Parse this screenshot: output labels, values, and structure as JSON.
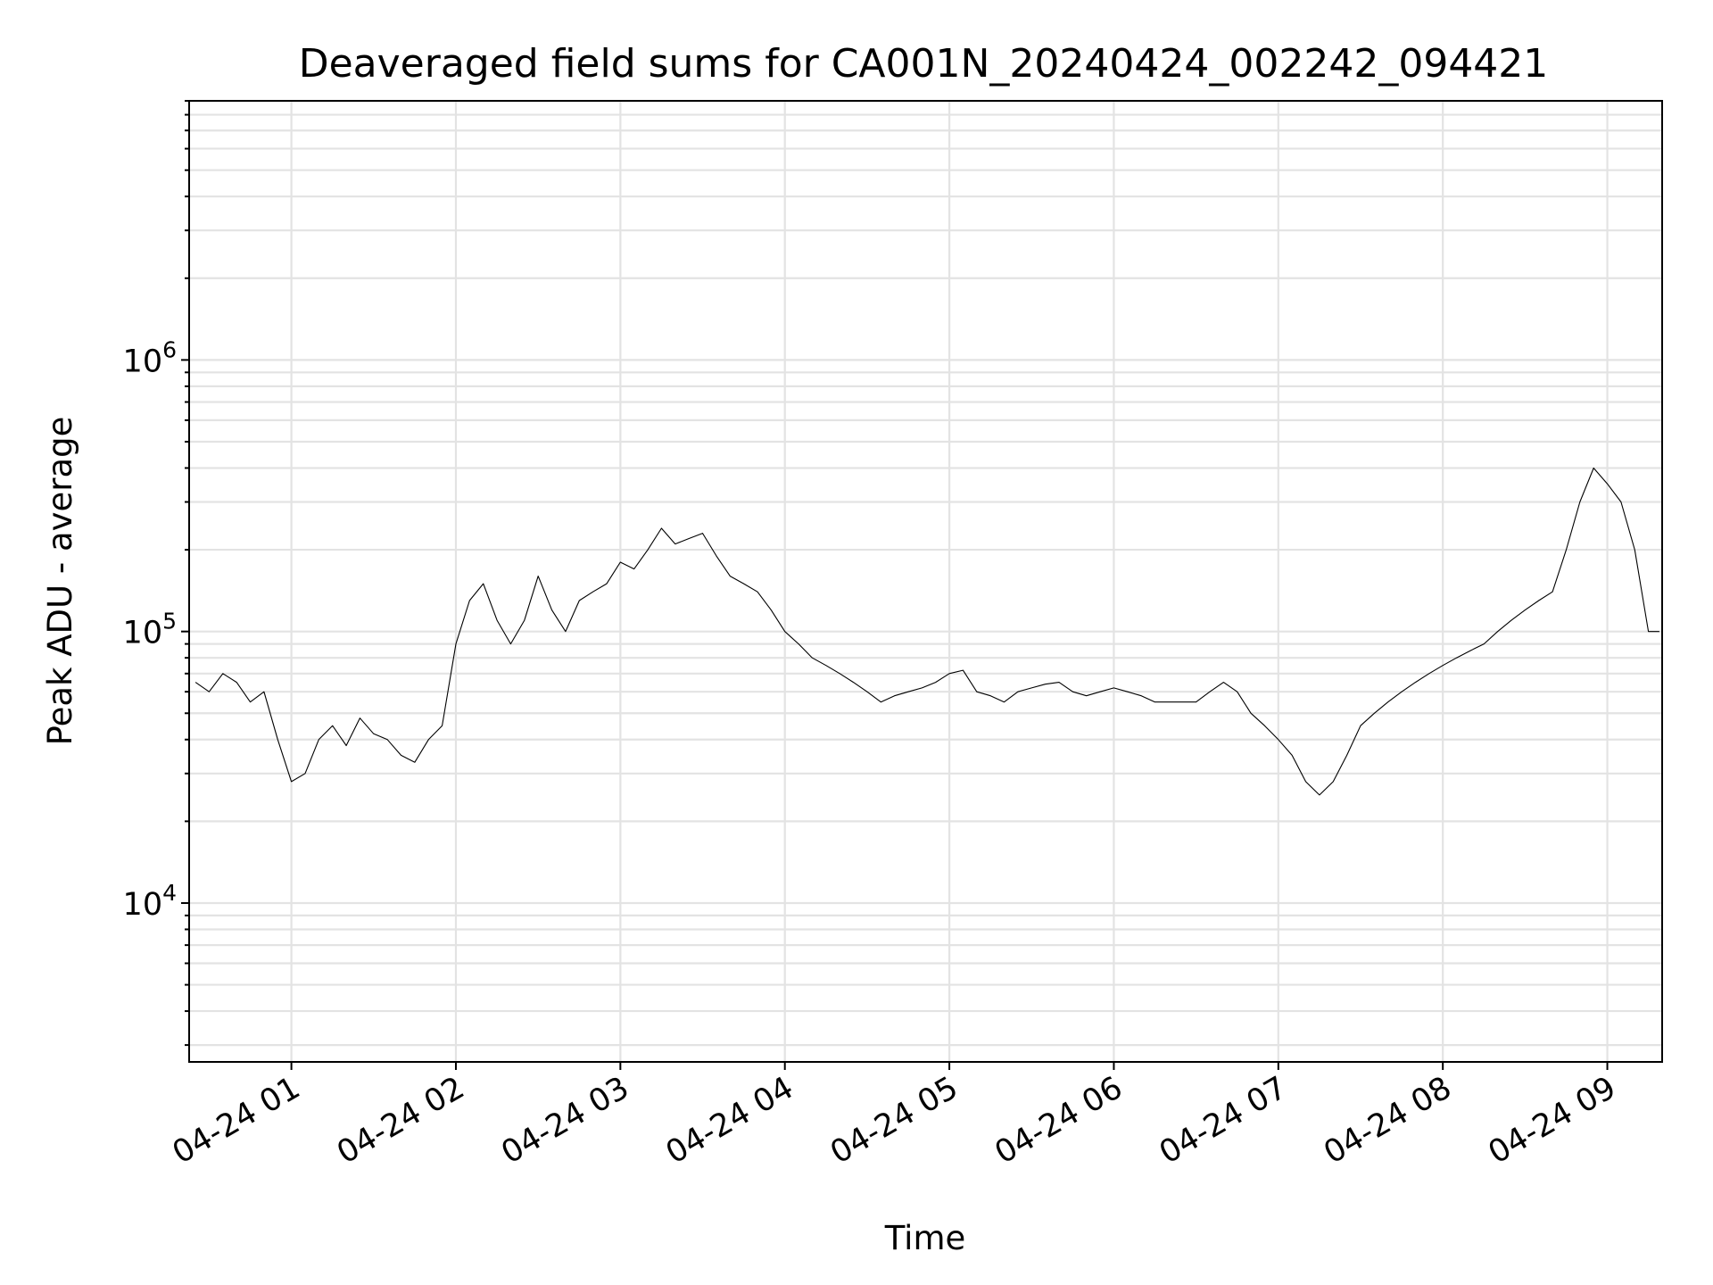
{
  "chart_data": {
    "type": "line",
    "title": "Deaveraged field sums for CA001N_20240424_002242_094421",
    "xlabel": "Time",
    "ylabel": "Peak ADU - average",
    "xlim": [
      "2024-04-24 00:22:42",
      "2024-04-24 09:20:00"
    ],
    "ylim": [
      2600,
      9000000
    ],
    "yscale": "log",
    "grid": "both",
    "x_ticks": [
      {
        "time": "2024-04-24 01:00",
        "label": "04-24 01"
      },
      {
        "time": "2024-04-24 02:00",
        "label": "04-24 02"
      },
      {
        "time": "2024-04-24 03:00",
        "label": "04-24 03"
      },
      {
        "time": "2024-04-24 04:00",
        "label": "04-24 04"
      },
      {
        "time": "2024-04-24 05:00",
        "label": "04-24 05"
      },
      {
        "time": "2024-04-24 06:00",
        "label": "04-24 06"
      },
      {
        "time": "2024-04-24 07:00",
        "label": "04-24 07"
      },
      {
        "time": "2024-04-24 08:00",
        "label": "04-24 08"
      },
      {
        "time": "2024-04-24 09:00",
        "label": "04-24 09"
      }
    ],
    "y_ticks": [
      {
        "value": 10000,
        "base": "10",
        "exp": "4"
      },
      {
        "value": 100000,
        "base": "10",
        "exp": "5"
      },
      {
        "value": 1000000,
        "base": "10",
        "exp": "6"
      }
    ],
    "series": [
      {
        "color": "#000000",
        "x": [
          "00:25",
          "00:30",
          "00:35",
          "00:40",
          "00:45",
          "00:50",
          "00:55",
          "01:00",
          "01:05",
          "01:10",
          "01:15",
          "01:20",
          "01:25",
          "01:30",
          "01:35",
          "01:40",
          "01:45",
          "01:50",
          "01:55",
          "02:00",
          "02:05",
          "02:10",
          "02:15",
          "02:20",
          "02:25",
          "02:30",
          "02:35",
          "02:40",
          "02:45",
          "02:50",
          "02:55",
          "03:00",
          "03:05",
          "03:10",
          "03:15",
          "03:20",
          "03:25",
          "03:30",
          "03:35",
          "03:40",
          "03:45",
          "03:50",
          "03:55",
          "04:00",
          "04:05",
          "04:10",
          "04:15",
          "04:20",
          "04:25",
          "04:30",
          "04:35",
          "04:40",
          "04:45",
          "04:50",
          "04:55",
          "05:00",
          "05:05",
          "05:10",
          "05:15",
          "05:20",
          "05:25",
          "05:30",
          "05:35",
          "05:40",
          "05:45",
          "05:50",
          "05:55",
          "06:00",
          "06:05",
          "06:10",
          "06:15",
          "06:20",
          "06:25",
          "06:30",
          "06:35",
          "06:40",
          "06:45",
          "06:50",
          "06:55",
          "07:00",
          "07:05",
          "07:10",
          "07:15",
          "07:20",
          "07:25",
          "07:30",
          "07:35",
          "07:40",
          "07:45",
          "07:50",
          "07:55",
          "08:00",
          "08:05",
          "08:10",
          "08:15",
          "08:20",
          "08:25",
          "08:30",
          "08:35",
          "08:40",
          "08:45",
          "08:50",
          "08:55",
          "09:00",
          "09:05",
          "09:10",
          "09:15",
          "09:19"
        ],
        "values": [
          65000,
          60000,
          70000,
          65000,
          55000,
          60000,
          40000,
          28000,
          30000,
          40000,
          45000,
          38000,
          48000,
          42000,
          40000,
          35000,
          33000,
          40000,
          45000,
          90000,
          130000,
          150000,
          110000,
          90000,
          110000,
          160000,
          120000,
          100000,
          130000,
          140000,
          150000,
          180000,
          170000,
          200000,
          240000,
          210000,
          220000,
          230000,
          190000,
          160000,
          150000,
          140000,
          120000,
          100000,
          90000,
          80000,
          75000,
          70000,
          65000,
          60000,
          55000,
          58000,
          60000,
          62000,
          65000,
          70000,
          72000,
          60000,
          58000,
          55000,
          60000,
          62000,
          64000,
          65000,
          60000,
          58000,
          60000,
          62000,
          60000,
          58000,
          55000,
          55000,
          55000,
          55000,
          60000,
          65000,
          60000,
          50000,
          45000,
          40000,
          35000,
          28000,
          25000,
          28000,
          35000,
          45000,
          50000,
          55000,
          60000,
          65000,
          70000,
          75000,
          80000,
          85000,
          90000,
          100000,
          110000,
          120000,
          130000,
          140000,
          200000,
          300000,
          400000,
          350000,
          300000,
          200000,
          100000,
          100000
        ]
      }
    ]
  }
}
